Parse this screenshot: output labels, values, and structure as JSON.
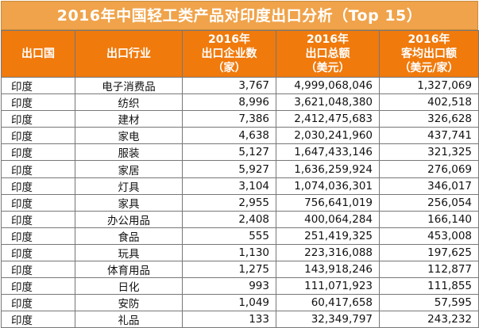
{
  "title": "2016年中国轻工类产品对印度出口分析（Top 15）",
  "headers": {
    "country": "出口国",
    "industry": "出口行业",
    "companies": [
      "2016年",
      "出口企业数",
      "（家）"
    ],
    "total": [
      "2016年",
      "出口总额",
      "（美元）"
    ],
    "avg": [
      "2016年",
      "客均出口额",
      "（美元/家）"
    ]
  },
  "rows": [
    {
      "country": "印度",
      "industry": "电子消费品",
      "companies": "3,767",
      "total": "4,999,068,046",
      "avg": "1,327,069"
    },
    {
      "country": "印度",
      "industry": "纺织",
      "companies": "8,996",
      "total": "3,621,048,380",
      "avg": "402,518"
    },
    {
      "country": "印度",
      "industry": "建材",
      "companies": "7,386",
      "total": "2,412,475,683",
      "avg": "326,628"
    },
    {
      "country": "印度",
      "industry": "家电",
      "companies": "4,638",
      "total": "2,030,241,960",
      "avg": "437,741"
    },
    {
      "country": "印度",
      "industry": "服装",
      "companies": "5,127",
      "total": "1,647,433,146",
      "avg": "321,325"
    },
    {
      "country": "印度",
      "industry": "家居",
      "companies": "5,927",
      "total": "1,636,259,924",
      "avg": "276,069"
    },
    {
      "country": "印度",
      "industry": "灯具",
      "companies": "3,104",
      "total": "1,074,036,301",
      "avg": "346,017"
    },
    {
      "country": "印度",
      "industry": "家具",
      "companies": "2,955",
      "total": "756,641,019",
      "avg": "256,054"
    },
    {
      "country": "印度",
      "industry": "办公用品",
      "companies": "2,408",
      "total": "400,064,284",
      "avg": "166,140"
    },
    {
      "country": "印度",
      "industry": "食品",
      "companies": "555",
      "total": "251,419,325",
      "avg": "453,008"
    },
    {
      "country": "印度",
      "industry": "玩具",
      "companies": "1,130",
      "total": "223,316,088",
      "avg": "197,625"
    },
    {
      "country": "印度",
      "industry": "体育用品",
      "companies": "1,275",
      "total": "143,918,246",
      "avg": "112,877"
    },
    {
      "country": "印度",
      "industry": "日化",
      "companies": "993",
      "total": "111,071,923",
      "avg": "111,855"
    },
    {
      "country": "印度",
      "industry": "安防",
      "companies": "1,049",
      "total": "60,417,658",
      "avg": "57,595"
    },
    {
      "country": "印度",
      "industry": "礼品",
      "companies": "133",
      "total": "32,349,797",
      "avg": "243,232"
    }
  ],
  "colors": {
    "title_bg": "#f0a34a",
    "header_bg": "#f07a0c",
    "header_text": "#ffffff"
  }
}
